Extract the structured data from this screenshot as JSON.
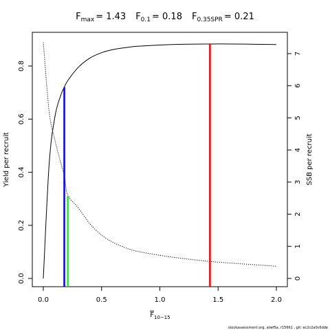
{
  "chart_data": {
    "type": "line",
    "title": {
      "fmax": {
        "sym": "F",
        "sub": "max",
        "value": "= 1.43"
      },
      "f01": {
        "sym": "F",
        "sub": "0.1",
        "value": "= 0.18"
      },
      "f35": {
        "sym": "F",
        "sub": "0.35SPR",
        "value": "= 0.21"
      }
    },
    "xlabel": {
      "sym": "F",
      "sub": "10−15"
    },
    "ylabel": "Yield per recruit",
    "ylabel_right": "SSB per recruit",
    "xlim": [
      0,
      2
    ],
    "ylim": [
      0,
      0.9
    ],
    "ylim_right": [
      0,
      7.5
    ],
    "x_ticks": [
      0.0,
      0.5,
      1.0,
      1.5,
      2.0
    ],
    "x_tick_labels": [
      "0.0",
      "0.5",
      "1.0",
      "1.5",
      "2.0"
    ],
    "y_ticks": [
      0.0,
      0.2,
      0.4,
      0.6,
      0.8
    ],
    "y_tick_labels": [
      "0.0",
      "0.2",
      "0.4",
      "0.6",
      "0.8"
    ],
    "y_right_ticks": [
      0,
      1,
      2,
      3,
      4,
      5,
      6,
      7
    ],
    "y_right_tick_labels": [
      "0",
      "1",
      "2",
      "3",
      "4",
      "5",
      "6",
      "7"
    ],
    "series": [
      {
        "axis": "left",
        "style": "solid",
        "x": [
          0,
          0.05,
          0.1,
          0.15,
          0.18,
          0.21,
          0.3,
          0.4,
          0.5,
          0.6,
          0.7,
          0.8,
          1.0,
          1.2,
          1.43,
          1.6,
          1.8,
          2.0
        ],
        "y": [
          0,
          0.43,
          0.61,
          0.69,
          0.72,
          0.745,
          0.795,
          0.83,
          0.85,
          0.862,
          0.869,
          0.874,
          0.879,
          0.882,
          0.883,
          0.883,
          0.882,
          0.881
        ]
      },
      {
        "axis": "right",
        "style": "dotted",
        "x": [
          0,
          0.05,
          0.1,
          0.15,
          0.18,
          0.21,
          0.3,
          0.4,
          0.5,
          0.6,
          0.7,
          0.8,
          1.0,
          1.2,
          1.43,
          1.6,
          1.8,
          2.0
        ],
        "y": [
          7.35,
          5.2,
          4.3,
          3.6,
          3.2,
          2.6,
          2.2,
          1.7,
          1.35,
          1.12,
          0.96,
          0.85,
          0.72,
          0.62,
          0.53,
          0.48,
          0.43,
          0.38
        ]
      }
    ],
    "reference_lines": [
      {
        "x": 0.18,
        "y_top": 0.72,
        "color": "#0000ff"
      },
      {
        "x": 0.21,
        "y_top": 0.31,
        "color": "#00ff00"
      },
      {
        "x": 1.43,
        "y_top": 0.883,
        "color": "#ff0000"
      }
    ],
    "footnote": "stockassessment.org, atwf5a, r15661 , git: ec2c2a0c6dde"
  }
}
